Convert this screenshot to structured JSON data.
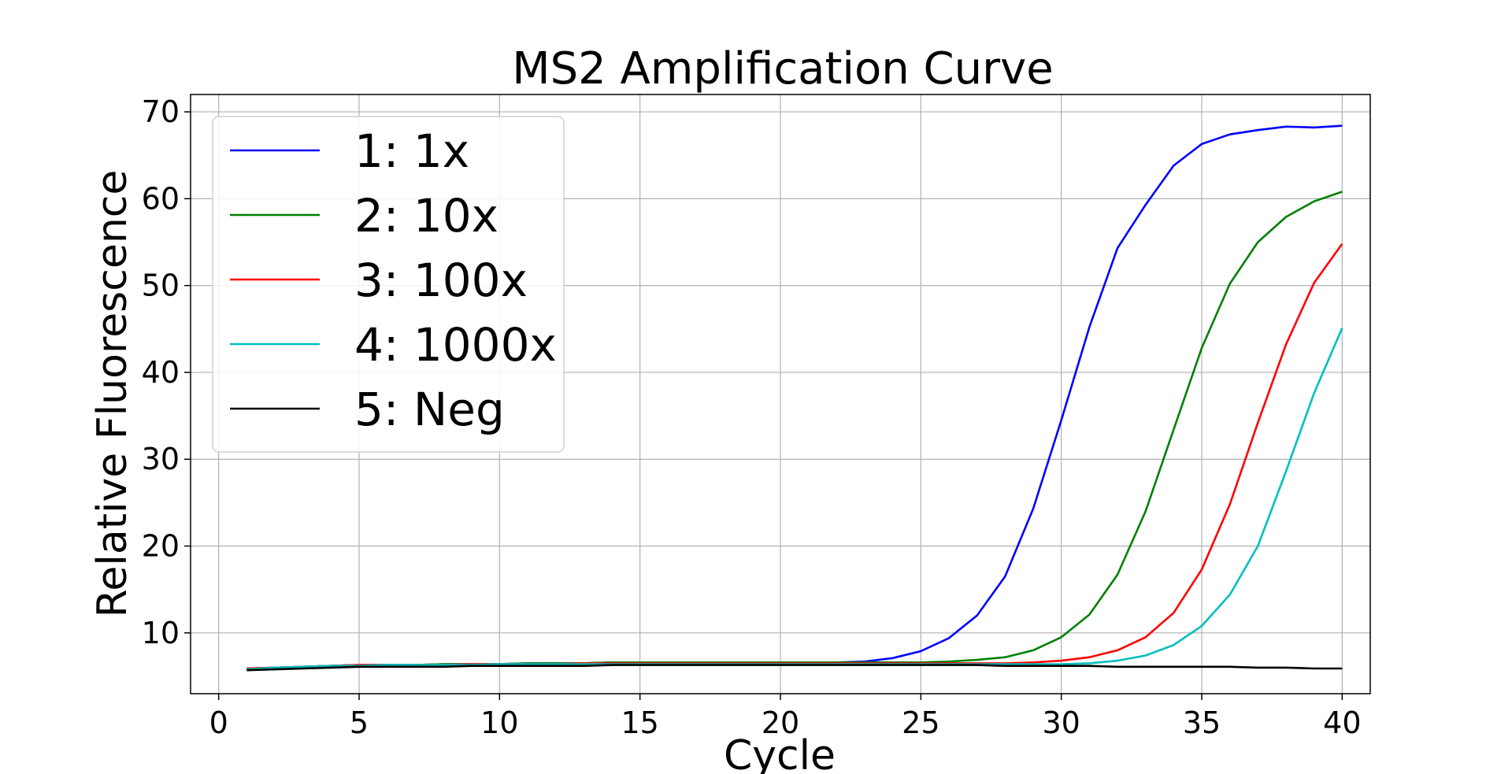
{
  "chart_data": {
    "type": "line",
    "title": "MS2 Amplification Curve",
    "xlabel": "Cycle",
    "ylabel": "Relative Fluorescence",
    "xlim": [
      -1,
      41
    ],
    "ylim": [
      3,
      72
    ],
    "xticks": [
      0,
      5,
      10,
      15,
      20,
      25,
      30,
      35,
      40
    ],
    "yticks": [
      10,
      20,
      30,
      40,
      50,
      60,
      70
    ],
    "grid": true,
    "legend_position": "top-left",
    "x": [
      1,
      2,
      3,
      4,
      5,
      6,
      7,
      8,
      9,
      10,
      11,
      12,
      13,
      14,
      15,
      16,
      17,
      18,
      19,
      20,
      21,
      22,
      23,
      24,
      25,
      26,
      27,
      28,
      29,
      30,
      31,
      32,
      33,
      34,
      35,
      36,
      37,
      38,
      39,
      40
    ],
    "series": [
      {
        "name": "1: 1x",
        "color": "#0000ff",
        "values": [
          5.9,
          6.0,
          6.1,
          6.2,
          6.3,
          6.3,
          6.3,
          6.4,
          6.4,
          6.4,
          6.5,
          6.5,
          6.5,
          6.6,
          6.6,
          6.6,
          6.6,
          6.6,
          6.6,
          6.6,
          6.6,
          6.6,
          6.7,
          7.1,
          7.9,
          9.4,
          12.0,
          16.5,
          24.3,
          34.5,
          45.2,
          54.3,
          59.3,
          63.8,
          66.3,
          67.4,
          67.9,
          68.3,
          68.2,
          68.4
        ]
      },
      {
        "name": "2: 10x",
        "color": "#008000",
        "values": [
          5.9,
          6.0,
          6.1,
          6.2,
          6.3,
          6.3,
          6.3,
          6.4,
          6.4,
          6.4,
          6.5,
          6.5,
          6.5,
          6.6,
          6.6,
          6.6,
          6.6,
          6.6,
          6.6,
          6.6,
          6.6,
          6.6,
          6.6,
          6.6,
          6.6,
          6.7,
          6.9,
          7.2,
          8.0,
          9.5,
          12.1,
          16.7,
          24.0,
          33.4,
          42.8,
          50.2,
          55.0,
          57.9,
          59.7,
          60.8
        ]
      },
      {
        "name": "3: 100x",
        "color": "#ff0000",
        "values": [
          5.9,
          6.0,
          6.1,
          6.2,
          6.3,
          6.3,
          6.3,
          6.3,
          6.4,
          6.4,
          6.4,
          6.4,
          6.5,
          6.5,
          6.5,
          6.5,
          6.5,
          6.5,
          6.5,
          6.5,
          6.5,
          6.5,
          6.5,
          6.5,
          6.5,
          6.5,
          6.5,
          6.5,
          6.6,
          6.8,
          7.2,
          8.0,
          9.5,
          12.3,
          17.3,
          24.8,
          34.2,
          43.2,
          50.3,
          54.8
        ]
      },
      {
        "name": "4: 1000x",
        "color": "#00bfbf",
        "values": [
          5.8,
          6.0,
          6.1,
          6.2,
          6.2,
          6.3,
          6.3,
          6.3,
          6.3,
          6.4,
          6.4,
          6.4,
          6.4,
          6.4,
          6.4,
          6.4,
          6.4,
          6.4,
          6.4,
          6.4,
          6.4,
          6.4,
          6.4,
          6.4,
          6.4,
          6.4,
          6.4,
          6.4,
          6.4,
          6.4,
          6.5,
          6.8,
          7.4,
          8.6,
          10.8,
          14.4,
          20.0,
          28.6,
          37.6,
          45.1
        ]
      },
      {
        "name": "5: Neg",
        "color": "#000000",
        "values": [
          5.7,
          5.8,
          5.9,
          6.0,
          6.1,
          6.1,
          6.1,
          6.1,
          6.2,
          6.2,
          6.2,
          6.2,
          6.2,
          6.3,
          6.3,
          6.3,
          6.3,
          6.3,
          6.3,
          6.3,
          6.3,
          6.3,
          6.3,
          6.3,
          6.3,
          6.3,
          6.3,
          6.2,
          6.2,
          6.2,
          6.2,
          6.1,
          6.1,
          6.1,
          6.1,
          6.1,
          6.0,
          6.0,
          5.9,
          5.9
        ]
      }
    ]
  }
}
